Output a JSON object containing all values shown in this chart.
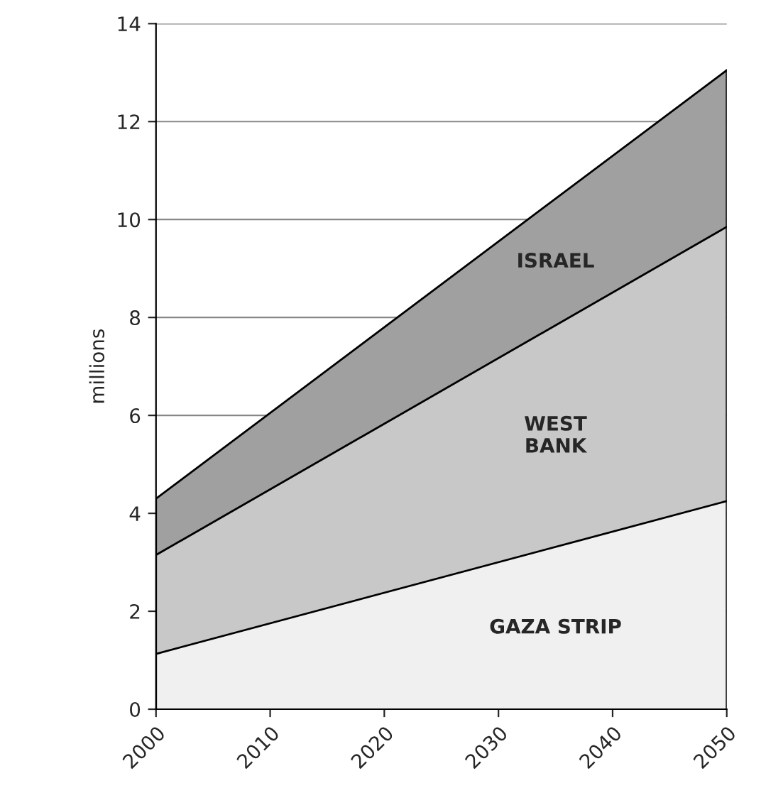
{
  "chart_data": {
    "type": "area",
    "stacked": true,
    "ylabel": "millions",
    "x": [
      2000,
      2050
    ],
    "series": [
      {
        "name": "GAZA STRIP",
        "color": "#f0f0f0",
        "values": [
          1.13,
          4.25
        ]
      },
      {
        "name": "WEST\nBANK",
        "color": "#c8c8c8",
        "values": [
          2.02,
          5.6
        ]
      },
      {
        "name": "ISRAEL",
        "color": "#a0a0a0",
        "values": [
          1.15,
          3.2
        ]
      }
    ],
    "xlim": [
      2000,
      2050
    ],
    "xticks": [
      2000,
      2010,
      2020,
      2030,
      2040,
      2050
    ],
    "ylim": [
      0,
      14
    ],
    "yticks": [
      0,
      2,
      4,
      6,
      8,
      10,
      12,
      14
    ],
    "grid": "y",
    "legend": false
  }
}
